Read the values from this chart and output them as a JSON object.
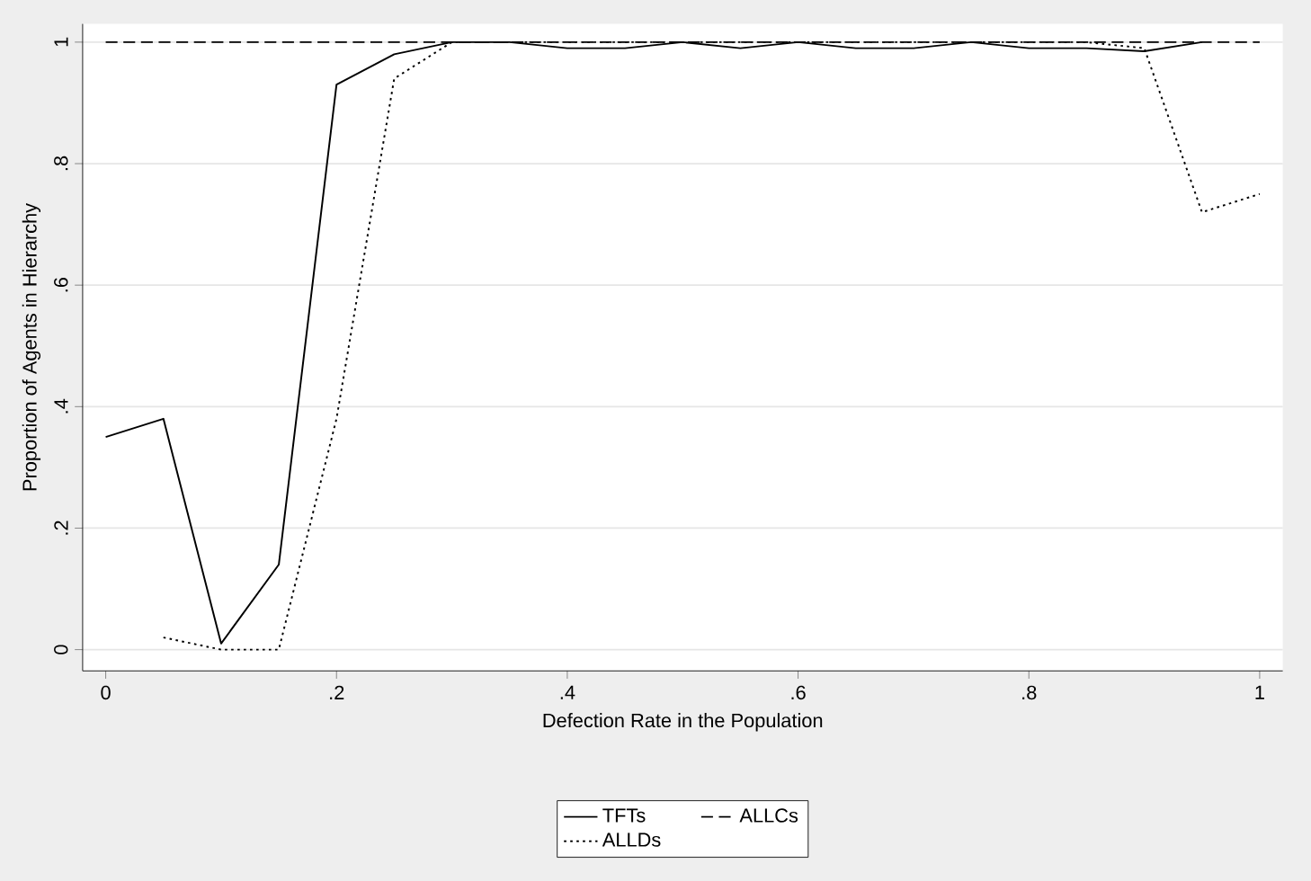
{
  "chart_data": {
    "type": "line",
    "xlabel": "Defection Rate in the Population",
    "ylabel": "Proportion of Agents in Hierarchy",
    "xlim": [
      -0.02,
      1.02
    ],
    "ylim": [
      -0.035,
      1.03
    ],
    "xticks": [
      0,
      {
        "value": 0.2,
        "label": ".2"
      },
      {
        "value": 0.4,
        "label": ".4"
      },
      {
        "value": 0.6,
        "label": ".6"
      },
      {
        "value": 0.8,
        "label": ".8"
      },
      1
    ],
    "yticks": [
      0,
      {
        "value": 0.2,
        "label": ".2"
      },
      {
        "value": 0.4,
        "label": ".4"
      },
      {
        "value": 0.6,
        "label": ".6"
      },
      {
        "value": 0.8,
        "label": ".8"
      },
      1
    ],
    "grid": "y",
    "legend": "bottom",
    "marker": "none",
    "series": [
      {
        "name": "TFTs",
        "color": "#000000",
        "line_style": "solid",
        "x": [
          0,
          0.05,
          0.1,
          0.15,
          0.2,
          0.25,
          0.3,
          0.35,
          0.4,
          0.45,
          0.5,
          0.55,
          0.6,
          0.65,
          0.7,
          0.75,
          0.8,
          0.85,
          0.9,
          0.95
        ],
        "values": [
          0.35,
          0.38,
          0.01,
          0.14,
          0.93,
          0.98,
          1,
          1,
          0.99,
          0.99,
          1,
          0.99,
          1,
          0.99,
          0.99,
          1,
          0.99,
          0.99,
          0.985,
          1
        ]
      },
      {
        "name": "ALLCs",
        "color": "#000000",
        "line_style": "dashed",
        "x": [
          0,
          0.05,
          0.1,
          0.15,
          0.2,
          0.25,
          0.3,
          0.35,
          0.4,
          0.45,
          0.5,
          0.55,
          0.6,
          0.65,
          0.7,
          0.75,
          0.8,
          0.85,
          0.9,
          0.95,
          1
        ],
        "values": [
          1,
          1,
          1,
          1,
          1,
          1,
          1,
          1,
          1,
          1,
          1,
          1,
          1,
          1,
          1,
          1,
          1,
          1,
          1,
          1,
          1
        ]
      },
      {
        "name": "ALLDs",
        "color": "#000000",
        "line_style": "dotted",
        "x": [
          0.05,
          0.1,
          0.15,
          0.2,
          0.25,
          0.3,
          0.35,
          0.4,
          0.45,
          0.5,
          0.55,
          0.6,
          0.65,
          0.7,
          0.75,
          0.8,
          0.85,
          0.9,
          0.95,
          1
        ],
        "values": [
          0.02,
          0,
          0,
          0.38,
          0.94,
          1,
          1,
          1,
          1,
          1,
          1,
          1,
          1,
          1,
          1,
          1,
          1,
          0.99,
          0.72,
          0.75
        ]
      }
    ]
  }
}
